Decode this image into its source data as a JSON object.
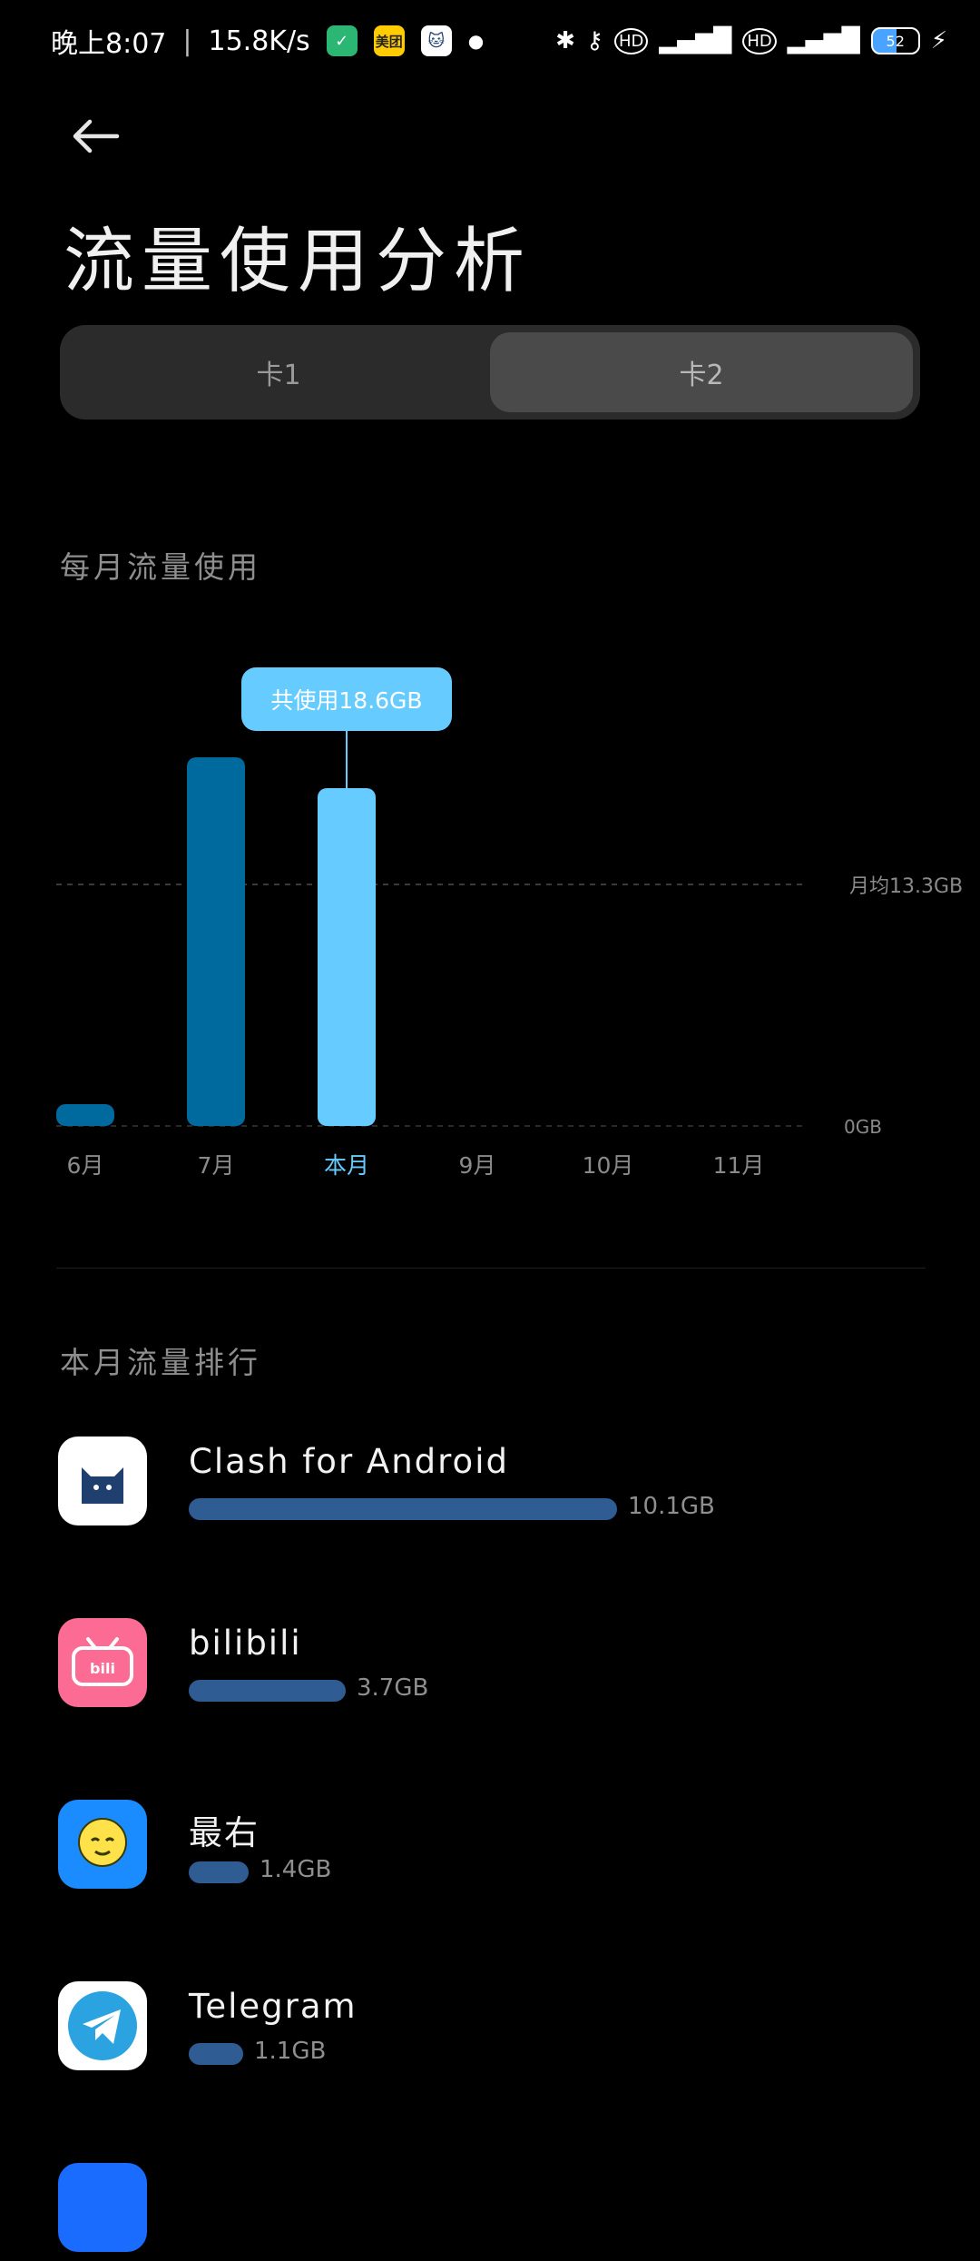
{
  "status_bar": {
    "time": "晚上8:07",
    "speed": "15.8K/s",
    "meituan_label": "美团",
    "battery": "52"
  },
  "page": {
    "title": "流量使用分析"
  },
  "sim_tabs": [
    {
      "label": "卡1",
      "active": false
    },
    {
      "label": "卡2",
      "active": true
    }
  ],
  "monthly_section_label": "每月流量使用",
  "chart_data": {
    "type": "bar",
    "categories": [
      "6月",
      "7月",
      "本月",
      "9月",
      "10月",
      "11月"
    ],
    "values": [
      1.2,
      20.3,
      18.6,
      0,
      0,
      0
    ],
    "ylim": [
      0,
      24
    ],
    "average_value": 13.3,
    "average_label": "月均13.3GB",
    "zero_label": "0GB",
    "tooltip": "共使用18.6GB",
    "highlight_index": 2,
    "colors": {
      "normal": "#006a9e",
      "highlight": "#66ccff",
      "tooltip_bg": "#66ccff"
    }
  },
  "ranking_section_label": "本月流量排行",
  "apps": [
    {
      "name": "Clash for Android",
      "usage": "10.1GB",
      "usage_fraction": 1.0,
      "icon": "cat-icon",
      "icon_bg": "#ffffff"
    },
    {
      "name": "bilibili",
      "usage": "3.7GB",
      "usage_fraction": 0.366,
      "icon": "bilibili-icon",
      "icon_bg": "#fb6b93"
    },
    {
      "name": "最右",
      "usage": "1.4GB",
      "usage_fraction": 0.139,
      "icon": "zuiyou-icon",
      "icon_bg": "#1a8cff"
    },
    {
      "name": "Telegram",
      "usage": "1.1GB",
      "usage_fraction": 0.11,
      "icon": "telegram-icon",
      "icon_bg": "#ffffff"
    }
  ]
}
